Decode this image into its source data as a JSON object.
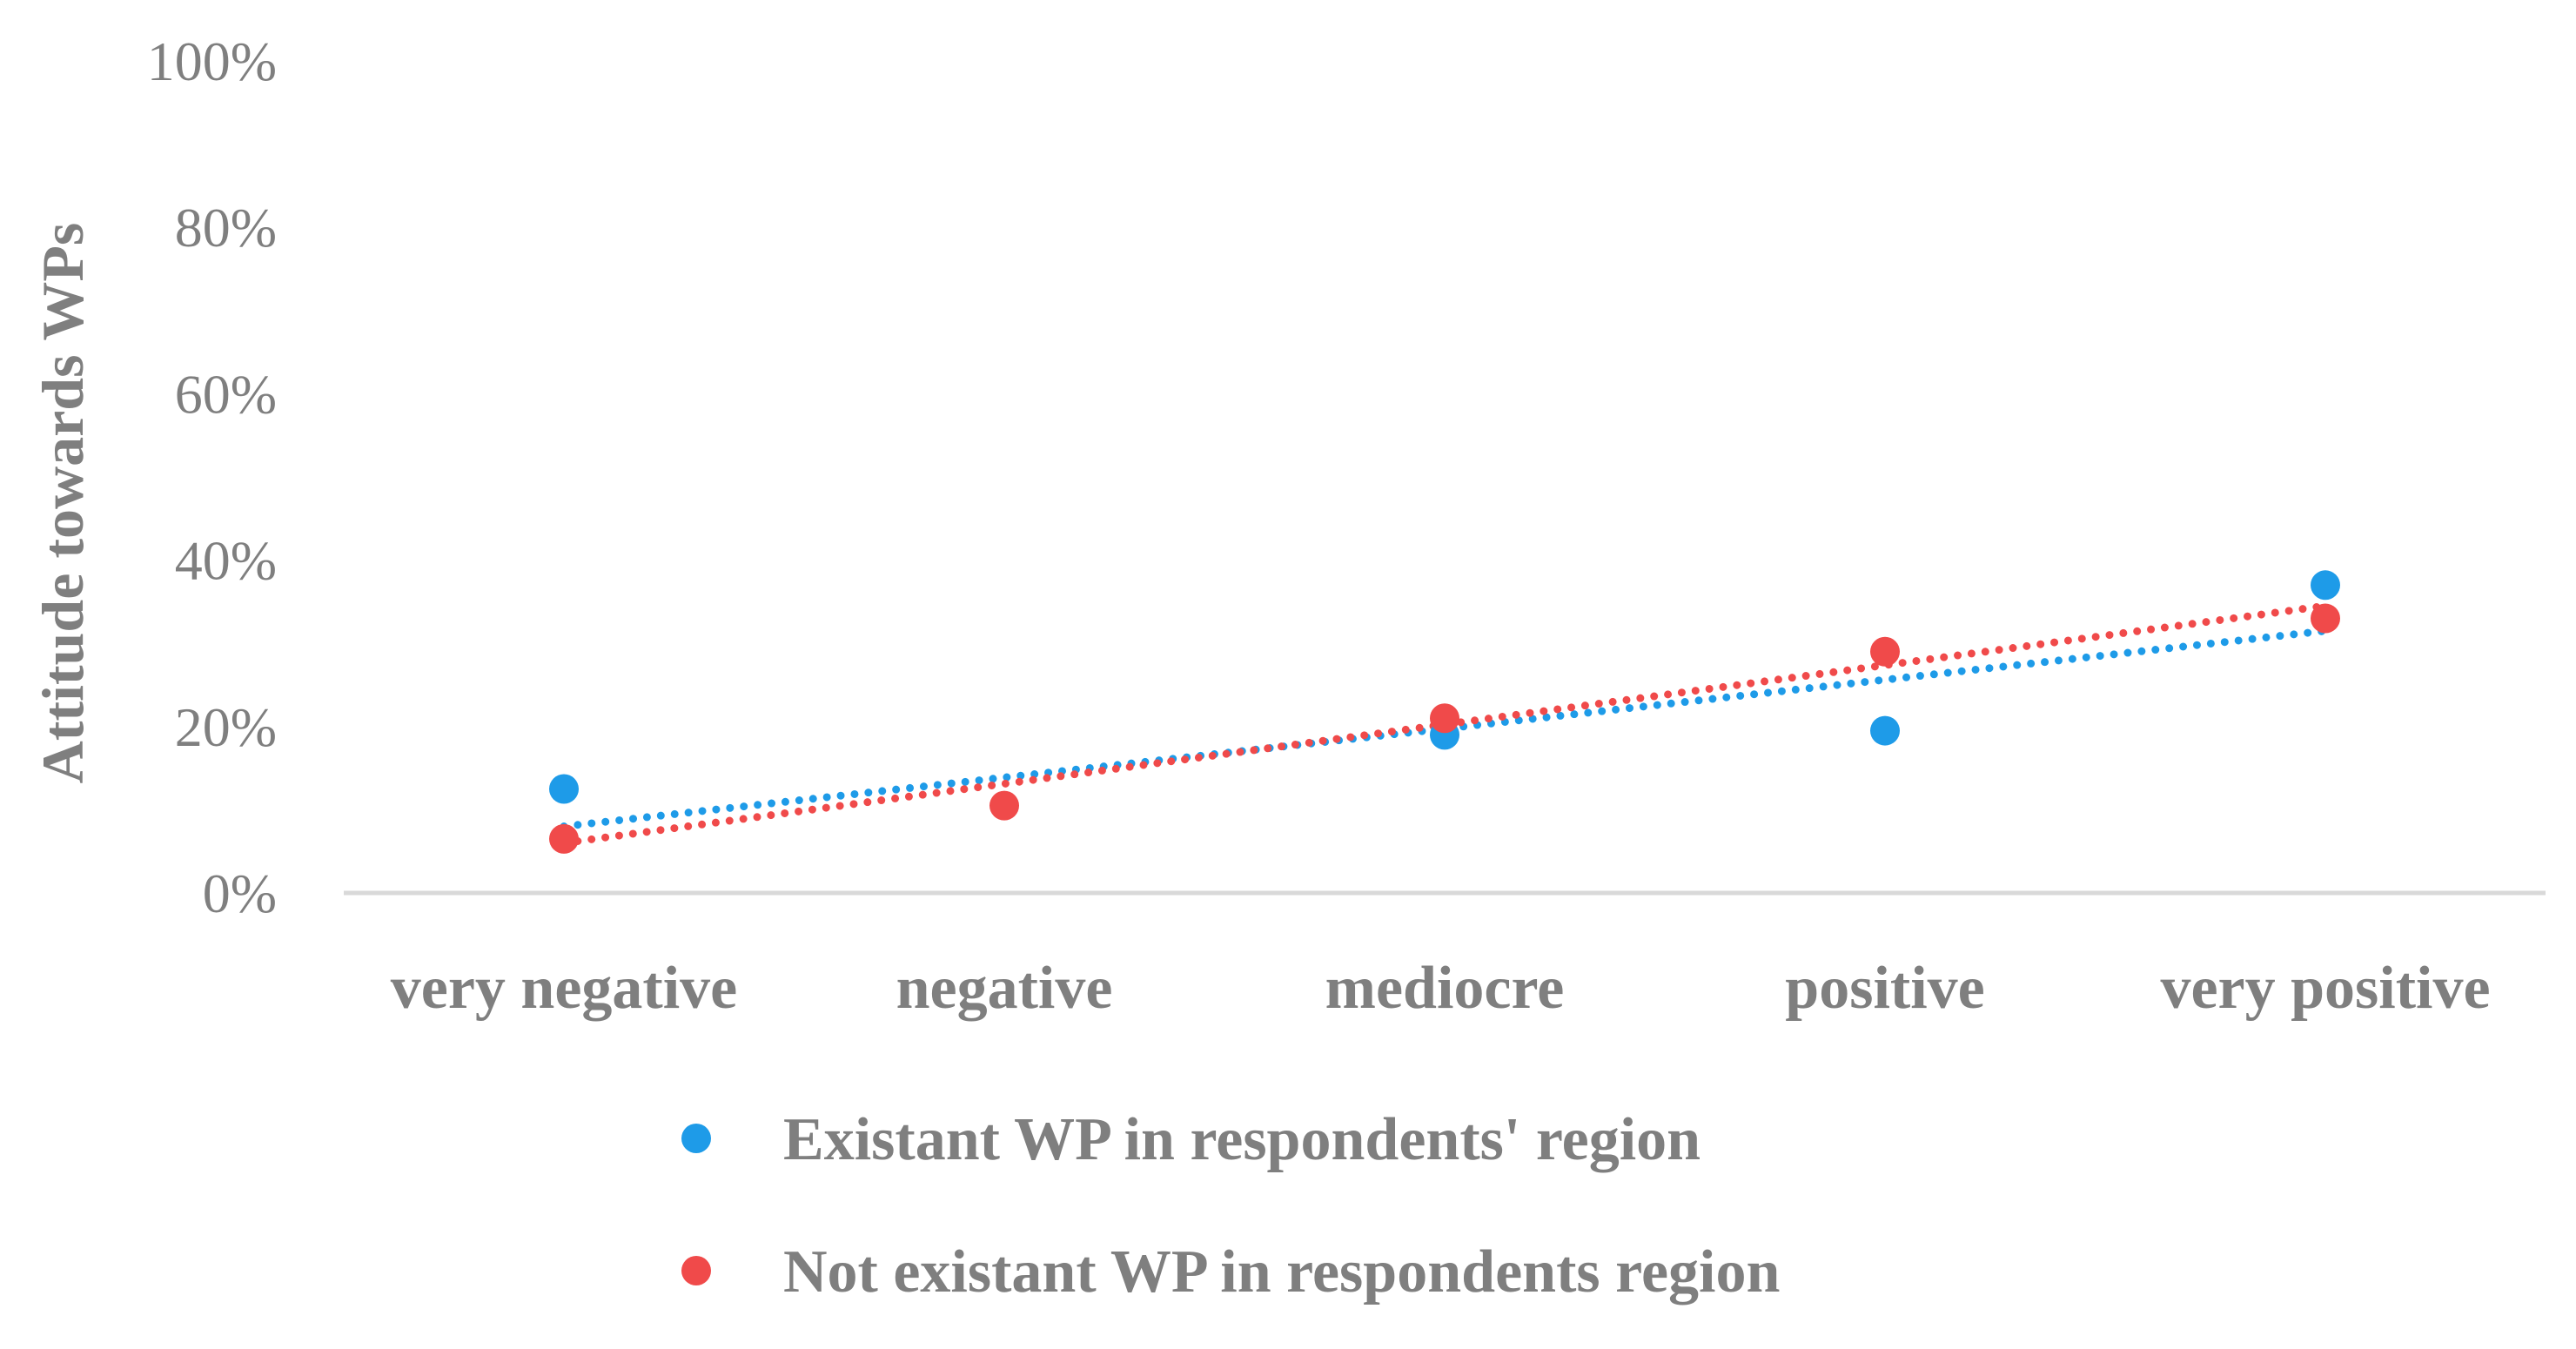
{
  "chart_data": {
    "type": "scatter",
    "title": "",
    "xlabel": "",
    "ylabel": "Attitude towards WPs",
    "categories": [
      "very negative",
      "negative",
      "mediocre",
      "positive",
      "very positive"
    ],
    "ylim": [
      0,
      100
    ],
    "yticks": [
      0,
      20,
      40,
      60,
      80,
      100
    ],
    "ytick_labels": [
      "0%",
      "20%",
      "40%",
      "60%",
      "80%",
      "100%"
    ],
    "grid": false,
    "legend_position": "bottom",
    "series": [
      {
        "name": "Existant WP in respondents' region",
        "color": "#1e9be8",
        "values": [
          12.5,
          null,
          19,
          19.5,
          37
        ],
        "trendline": {
          "type": "linear",
          "start": 8,
          "end": 31.5,
          "style": "dotted"
        }
      },
      {
        "name": "Not existant WP in respondents region",
        "color": "#f04a4a",
        "values": [
          6.5,
          10.5,
          21,
          29,
          33
        ],
        "trendline": {
          "type": "linear",
          "start": 6,
          "end": 34.5,
          "style": "dotted"
        }
      }
    ]
  }
}
